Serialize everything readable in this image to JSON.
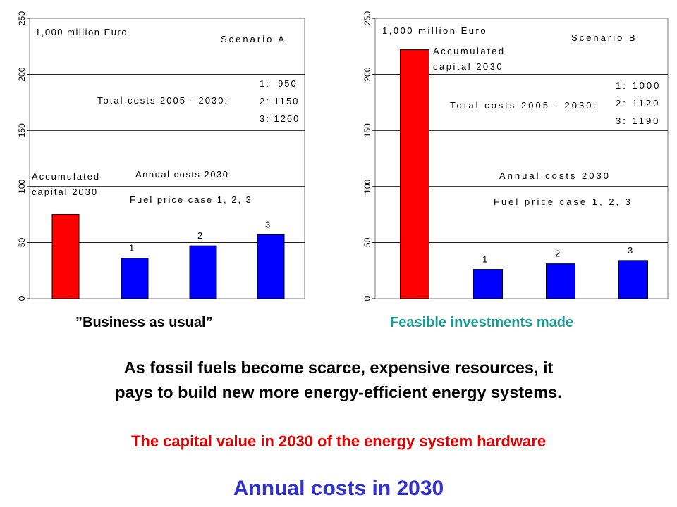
{
  "chart_data": [
    {
      "type": "bar",
      "categories": [
        "Accumulated capital 2030",
        "1",
        "2",
        "3"
      ],
      "values": [
        75,
        36,
        47,
        57
      ],
      "colors": [
        "#ff0000",
        "#0000ff",
        "#0000ff",
        "#0000ff"
      ],
      "bar_labels": [
        "",
        "1",
        "2",
        "3"
      ],
      "ylim": [
        0,
        250
      ],
      "yticks": [
        0,
        50,
        100,
        150,
        200,
        250
      ],
      "grid": true,
      "annotations": {
        "units": "1,000 million Euro",
        "scenario": "Scenario A",
        "total_costs": "Total costs 2005 - 2030:",
        "total_values": [
          "1:  950",
          "2: 1150",
          "3: 1260"
        ],
        "capital_line1": "Accumulated",
        "capital_line2": "capital 2030",
        "annual": "Annual costs 2030",
        "fuel": "Fuel price case 1, 2, 3"
      },
      "caption": "”Business as usual”"
    },
    {
      "type": "bar",
      "categories": [
        "Accumulated capital 2030",
        "1",
        "2",
        "3"
      ],
      "values": [
        222,
        26,
        31,
        34
      ],
      "colors": [
        "#ff0000",
        "#0000ff",
        "#0000ff",
        "#0000ff"
      ],
      "bar_labels": [
        "",
        "1",
        "2",
        "3"
      ],
      "ylim": [
        0,
        250
      ],
      "yticks": [
        0,
        50,
        100,
        150,
        200,
        250
      ],
      "grid": true,
      "annotations": {
        "units": "1,000 million Euro",
        "scenario": "Scenario B",
        "total_costs": "Total costs 2005 - 2030:",
        "total_values": [
          "1: 1000",
          "2: 1120",
          "3: 1190"
        ],
        "capital_line1": "Accumulated",
        "capital_line2": "capital 2030",
        "annual": "Annual costs 2030",
        "fuel": "Fuel price case 1, 2, 3"
      },
      "caption": "Feasible investments made"
    }
  ],
  "text": {
    "headline_line1": "As fossil fuels become scarce, expensive resources, it",
    "headline_line2": "pays to build new more energy-efficient energy systems.",
    "capital_value_line": "The capital value in 2030 of the energy system hardware",
    "annual_costs_line": "Annual costs in 2030"
  }
}
